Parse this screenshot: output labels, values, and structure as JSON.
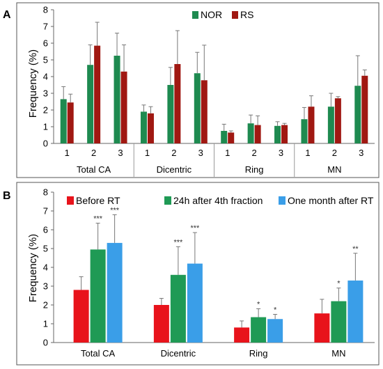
{
  "colors": {
    "nor": "#1e8a50",
    "rs": "#a01812",
    "before": "#e8131b",
    "after24": "#1f9a55",
    "month": "#3a9ee8",
    "error": "#777777",
    "frame": "#555555"
  },
  "chart_data": [
    {
      "panel_label": "A",
      "type": "bar",
      "ylabel": "Frequency (%)",
      "ylim": [
        0,
        8
      ],
      "yticks": [
        "0",
        "1",
        "2",
        "3",
        "4",
        "5",
        "6",
        "7",
        "8"
      ],
      "legend": {
        "placement": "top-center",
        "entries": [
          "NOR",
          "RS"
        ]
      },
      "groups": [
        {
          "name": "Total CA",
          "subcategories": [
            "1",
            "2",
            "3"
          ]
        },
        {
          "name": "Dicentric",
          "subcategories": [
            "1",
            "2",
            "3"
          ]
        },
        {
          "name": "Ring",
          "subcategories": [
            "1",
            "2",
            "3"
          ]
        },
        {
          "name": "MN",
          "subcategories": [
            "1",
            "2",
            "3"
          ]
        }
      ],
      "series": [
        {
          "name": "NOR",
          "values": [
            2.65,
            4.7,
            5.25,
            1.9,
            3.5,
            4.2,
            0.75,
            1.2,
            1.05,
            1.45,
            2.2,
            3.45
          ],
          "errors": [
            0.75,
            1.2,
            1.35,
            0.4,
            1.05,
            1.25,
            0.4,
            0.5,
            0.25,
            0.7,
            0.8,
            1.8
          ]
        },
        {
          "name": "RS",
          "values": [
            2.45,
            5.85,
            4.3,
            1.8,
            4.75,
            3.78,
            0.65,
            1.1,
            1.1,
            2.2,
            2.7,
            4.05
          ],
          "errors": [
            0.5,
            1.4,
            1.6,
            0.4,
            2.0,
            2.1,
            0.1,
            0.55,
            0.1,
            0.65,
            0.1,
            0.35
          ]
        }
      ]
    },
    {
      "panel_label": "B",
      "type": "bar",
      "ylabel": "Frequency (%)",
      "ylim": [
        0,
        8
      ],
      "yticks": [
        "0",
        "1",
        "2",
        "3",
        "4",
        "5",
        "6",
        "7",
        "8"
      ],
      "legend": {
        "placement": "top",
        "entries": [
          "Before RT",
          "24h after 4th fraction",
          "One month after RT"
        ]
      },
      "categories": [
        "Total CA",
        "Dicentric",
        "Ring",
        "MN"
      ],
      "series": [
        {
          "name": "Before RT",
          "values": [
            2.8,
            2.0,
            0.8,
            1.55
          ],
          "errors": [
            0.7,
            0.35,
            0.35,
            0.75
          ],
          "annotations": [
            "",
            "",
            "",
            ""
          ]
        },
        {
          "name": "24h after 4th fraction",
          "values": [
            4.95,
            3.6,
            1.35,
            2.2
          ],
          "errors": [
            1.4,
            1.5,
            0.45,
            0.7
          ],
          "annotations": [
            "***",
            "***",
            "*",
            "*"
          ]
        },
        {
          "name": "One month after RT",
          "values": [
            5.3,
            4.2,
            1.25,
            3.3
          ],
          "errors": [
            1.5,
            1.65,
            0.25,
            1.45
          ],
          "annotations": [
            "***",
            "***",
            "*",
            "**"
          ]
        }
      ]
    }
  ]
}
